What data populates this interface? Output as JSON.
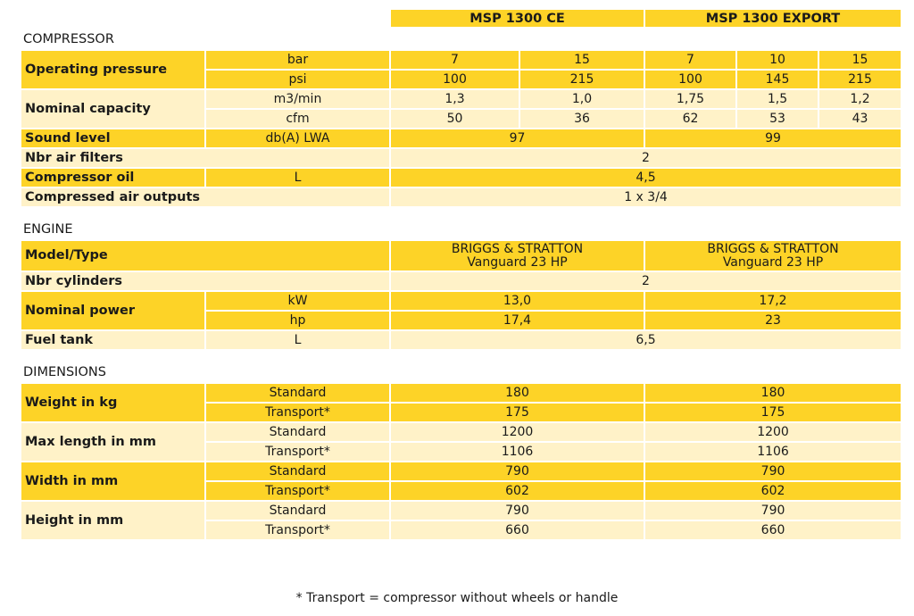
{
  "colors": {
    "yellow": "#FDD327",
    "light": "#FFF2C8"
  },
  "header": [
    "MSP 1300 CE",
    "MSP 1300 EXPORT"
  ],
  "sections": [
    {
      "title": "COMPRESSOR",
      "rows": [
        {
          "tone": "yellow",
          "cells": [
            {
              "t": "Operating pressure",
              "label": true,
              "rs": 2
            },
            {
              "t": "bar"
            },
            {
              "t": "7"
            },
            {
              "t": "15"
            },
            {
              "t": "7"
            },
            {
              "t": "10"
            },
            {
              "t": "15"
            }
          ]
        },
        {
          "tone": "yellow",
          "cells": [
            {
              "t": "psi"
            },
            {
              "t": "100"
            },
            {
              "t": "215"
            },
            {
              "t": "100"
            },
            {
              "t": "145"
            },
            {
              "t": "215"
            }
          ]
        },
        {
          "tone": "light",
          "cells": [
            {
              "t": "Nominal capacity",
              "label": true,
              "rs": 2
            },
            {
              "t": "m3/min"
            },
            {
              "t": "1,3"
            },
            {
              "t": "1,0"
            },
            {
              "t": "1,75"
            },
            {
              "t": "1,5"
            },
            {
              "t": "1,2"
            }
          ]
        },
        {
          "tone": "light",
          "cells": [
            {
              "t": "cfm"
            },
            {
              "t": "50"
            },
            {
              "t": "36"
            },
            {
              "t": "62"
            },
            {
              "t": "53"
            },
            {
              "t": "43"
            }
          ]
        },
        {
          "tone": "yellow",
          "cells": [
            {
              "t": "Sound level",
              "label": true
            },
            {
              "t": "db(A) LWA"
            },
            {
              "t": "97",
              "cs": 2
            },
            {
              "t": "99",
              "cs": 3
            }
          ]
        },
        {
          "tone": "light",
          "cells": [
            {
              "t": "Nbr air filters",
              "label": true,
              "cs": 2
            },
            {
              "t": "2",
              "cs": 5
            }
          ]
        },
        {
          "tone": "yellow",
          "cells": [
            {
              "t": "Compressor oil",
              "label": true
            },
            {
              "t": "L"
            },
            {
              "t": "4,5",
              "cs": 5
            }
          ]
        },
        {
          "tone": "light",
          "cells": [
            {
              "t": "Compressed air outputs",
              "label": true,
              "cs": 2
            },
            {
              "t": "1 x 3/4",
              "cs": 5
            }
          ]
        }
      ]
    },
    {
      "title": "ENGINE",
      "rows": [
        {
          "tone": "yellow",
          "tall": true,
          "cells": [
            {
              "t": "Model/Type",
              "label": true,
              "cs": 2
            },
            {
              "t": "BRIGGS & STRATTON\nVanguard 23 HP",
              "cs": 2
            },
            {
              "t": "BRIGGS & STRATTON\nVanguard 23 HP",
              "cs": 3
            }
          ]
        },
        {
          "tone": "light",
          "cells": [
            {
              "t": "Nbr cylinders",
              "label": true,
              "cs": 2
            },
            {
              "t": "2",
              "cs": 5
            }
          ]
        },
        {
          "tone": "yellow",
          "cells": [
            {
              "t": "Nominal power",
              "label": true,
              "rs": 2
            },
            {
              "t": "kW"
            },
            {
              "t": "13,0",
              "cs": 2
            },
            {
              "t": "17,2",
              "cs": 3
            }
          ]
        },
        {
          "tone": "yellow",
          "cells": [
            {
              "t": "hp"
            },
            {
              "t": "17,4",
              "cs": 2
            },
            {
              "t": "23",
              "cs": 3
            }
          ]
        },
        {
          "tone": "light",
          "cells": [
            {
              "t": "Fuel tank",
              "label": true
            },
            {
              "t": "L"
            },
            {
              "t": "6,5",
              "cs": 5
            }
          ]
        }
      ]
    },
    {
      "title": "DIMENSIONS",
      "rows": [
        {
          "tone": "yellow",
          "cells": [
            {
              "t": "Weight in kg",
              "label": true,
              "rs": 2
            },
            {
              "t": "Standard"
            },
            {
              "t": "180",
              "cs": 2
            },
            {
              "t": "180",
              "cs": 3
            }
          ]
        },
        {
          "tone": "yellow",
          "cells": [
            {
              "t": "Transport*"
            },
            {
              "t": "175",
              "cs": 2
            },
            {
              "t": "175",
              "cs": 3
            }
          ]
        },
        {
          "tone": "light",
          "cells": [
            {
              "t": "Max length in mm",
              "label": true,
              "rs": 2
            },
            {
              "t": "Standard"
            },
            {
              "t": "1200",
              "cs": 2
            },
            {
              "t": "1200",
              "cs": 3
            }
          ]
        },
        {
          "tone": "light",
          "cells": [
            {
              "t": "Transport*"
            },
            {
              "t": "1106",
              "cs": 2
            },
            {
              "t": "1106",
              "cs": 3
            }
          ]
        },
        {
          "tone": "yellow",
          "cells": [
            {
              "t": "Width in mm",
              "label": true,
              "rs": 2
            },
            {
              "t": "Standard"
            },
            {
              "t": "790",
              "cs": 2
            },
            {
              "t": "790",
              "cs": 3
            }
          ]
        },
        {
          "tone": "yellow",
          "cells": [
            {
              "t": "Transport*"
            },
            {
              "t": "602",
              "cs": 2
            },
            {
              "t": "602",
              "cs": 3
            }
          ]
        },
        {
          "tone": "light",
          "cells": [
            {
              "t": "Height in mm",
              "label": true,
              "rs": 2
            },
            {
              "t": "Standard"
            },
            {
              "t": "790",
              "cs": 2
            },
            {
              "t": "790",
              "cs": 3
            }
          ]
        },
        {
          "tone": "light",
          "cells": [
            {
              "t": "Transport*"
            },
            {
              "t": "660",
              "cs": 2
            },
            {
              "t": "660",
              "cs": 3
            }
          ]
        }
      ]
    }
  ],
  "footnote": "* Transport = compressor without wheels or handle"
}
